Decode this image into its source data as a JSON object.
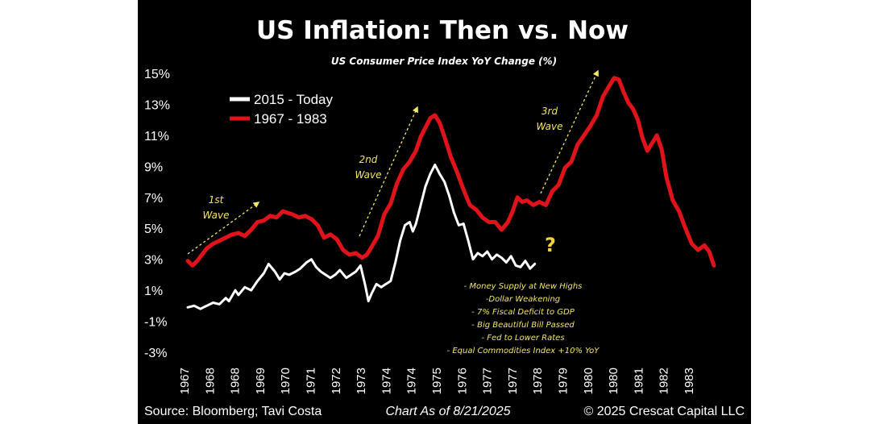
{
  "chart_data": {
    "type": "line",
    "title": "US Inflation: Then vs. Now",
    "subtitle": "US Consumer Price Index YoY Change (%)",
    "xlabel": "",
    "ylabel": "",
    "ylim": [
      -3,
      15
    ],
    "y_ticks": [
      "15%",
      "13%",
      "11%",
      "9%",
      "7%",
      "5%",
      "3%",
      "1%",
      "-1%",
      "-3%"
    ],
    "x_ticks": [
      "1967",
      "1968",
      "1968",
      "1969",
      "1970",
      "1971",
      "1972",
      "1973",
      "1974",
      "1974",
      "1975",
      "1976",
      "1977",
      "1977",
      "1978",
      "1979",
      "1980",
      "1980",
      "1981",
      "1982",
      "1983"
    ],
    "x_domain": [
      1967.0,
      1983.6
    ],
    "legend_position": "top-left",
    "series": [
      {
        "name": "2015 - Today",
        "color": "#ffffff",
        "points": [
          [
            1967.0,
            -0.1
          ],
          [
            1967.2,
            0.0
          ],
          [
            1967.4,
            -0.2
          ],
          [
            1967.6,
            0.0
          ],
          [
            1967.8,
            0.2
          ],
          [
            1968.0,
            0.1
          ],
          [
            1968.2,
            0.5
          ],
          [
            1968.3,
            0.3
          ],
          [
            1968.5,
            1.0
          ],
          [
            1968.6,
            0.7
          ],
          [
            1968.8,
            1.2
          ],
          [
            1969.0,
            1.0
          ],
          [
            1969.2,
            1.6
          ],
          [
            1969.4,
            2.1
          ],
          [
            1969.55,
            2.7
          ],
          [
            1969.75,
            2.2
          ],
          [
            1969.9,
            1.7
          ],
          [
            1970.05,
            2.1
          ],
          [
            1970.2,
            2.0
          ],
          [
            1970.4,
            2.2
          ],
          [
            1970.55,
            2.4
          ],
          [
            1970.75,
            2.8
          ],
          [
            1970.9,
            3.0
          ],
          [
            1971.05,
            2.5
          ],
          [
            1971.2,
            2.2
          ],
          [
            1971.35,
            2.0
          ],
          [
            1971.5,
            1.8
          ],
          [
            1971.65,
            2.0
          ],
          [
            1971.8,
            2.3
          ],
          [
            1972.0,
            1.8
          ],
          [
            1972.15,
            2.0
          ],
          [
            1972.3,
            2.2
          ],
          [
            1972.45,
            2.6
          ],
          [
            1972.6,
            1.3
          ],
          [
            1972.7,
            0.3
          ],
          [
            1972.8,
            0.8
          ],
          [
            1972.95,
            1.4
          ],
          [
            1973.1,
            1.2
          ],
          [
            1973.25,
            1.4
          ],
          [
            1973.4,
            1.6
          ],
          [
            1973.55,
            2.8
          ],
          [
            1973.7,
            4.2
          ],
          [
            1973.85,
            5.2
          ],
          [
            1974.0,
            5.4
          ],
          [
            1974.1,
            4.8
          ],
          [
            1974.2,
            5.3
          ],
          [
            1974.35,
            6.5
          ],
          [
            1974.5,
            7.7
          ],
          [
            1974.65,
            8.5
          ],
          [
            1974.8,
            9.1
          ],
          [
            1974.95,
            8.5
          ],
          [
            1975.1,
            8.0
          ],
          [
            1975.25,
            7.1
          ],
          [
            1975.4,
            6.0
          ],
          [
            1975.55,
            5.2
          ],
          [
            1975.7,
            5.3
          ],
          [
            1975.85,
            4.2
          ],
          [
            1976.0,
            3.0
          ],
          [
            1976.15,
            3.4
          ],
          [
            1976.3,
            3.2
          ],
          [
            1976.45,
            3.5
          ],
          [
            1976.6,
            3.0
          ],
          [
            1976.75,
            3.3
          ],
          [
            1976.9,
            3.1
          ],
          [
            1977.05,
            2.8
          ],
          [
            1977.2,
            3.2
          ],
          [
            1977.35,
            2.6
          ],
          [
            1977.5,
            2.5
          ],
          [
            1977.65,
            2.9
          ],
          [
            1977.8,
            2.4
          ],
          [
            1977.95,
            2.7
          ]
        ]
      },
      {
        "name": "1967 - 1983",
        "color": "#e0131b",
        "points": [
          [
            1967.0,
            2.9
          ],
          [
            1967.15,
            2.6
          ],
          [
            1967.3,
            2.9
          ],
          [
            1967.45,
            3.3
          ],
          [
            1967.6,
            3.7
          ],
          [
            1967.8,
            4.0
          ],
          [
            1968.0,
            4.2
          ],
          [
            1968.2,
            4.4
          ],
          [
            1968.4,
            4.6
          ],
          [
            1968.6,
            4.7
          ],
          [
            1968.8,
            4.5
          ],
          [
            1969.0,
            4.9
          ],
          [
            1969.2,
            5.4
          ],
          [
            1969.4,
            5.5
          ],
          [
            1969.6,
            5.8
          ],
          [
            1969.8,
            5.7
          ],
          [
            1970.0,
            6.1
          ],
          [
            1970.15,
            6.0
          ],
          [
            1970.3,
            5.9
          ],
          [
            1970.5,
            5.7
          ],
          [
            1970.7,
            5.8
          ],
          [
            1970.9,
            5.6
          ],
          [
            1971.1,
            5.2
          ],
          [
            1971.3,
            4.4
          ],
          [
            1971.5,
            4.6
          ],
          [
            1971.7,
            4.3
          ],
          [
            1971.9,
            3.6
          ],
          [
            1972.1,
            3.3
          ],
          [
            1972.3,
            3.4
          ],
          [
            1972.5,
            3.1
          ],
          [
            1972.65,
            3.3
          ],
          [
            1972.8,
            3.8
          ],
          [
            1973.0,
            4.5
          ],
          [
            1973.2,
            5.9
          ],
          [
            1973.4,
            6.6
          ],
          [
            1973.6,
            7.9
          ],
          [
            1973.8,
            8.8
          ],
          [
            1974.0,
            9.3
          ],
          [
            1974.2,
            10.0
          ],
          [
            1974.35,
            10.9
          ],
          [
            1974.5,
            11.5
          ],
          [
            1974.65,
            12.1
          ],
          [
            1974.8,
            12.3
          ],
          [
            1974.95,
            11.8
          ],
          [
            1975.1,
            10.9
          ],
          [
            1975.3,
            9.6
          ],
          [
            1975.5,
            8.6
          ],
          [
            1975.7,
            7.5
          ],
          [
            1975.9,
            6.5
          ],
          [
            1976.1,
            6.2
          ],
          [
            1976.3,
            5.7
          ],
          [
            1976.5,
            5.4
          ],
          [
            1976.7,
            5.4
          ],
          [
            1976.9,
            4.9
          ],
          [
            1977.1,
            5.4
          ],
          [
            1977.25,
            6.1
          ],
          [
            1977.4,
            7.0
          ],
          [
            1977.55,
            6.7
          ],
          [
            1977.7,
            6.8
          ],
          [
            1977.9,
            6.5
          ],
          [
            1978.1,
            6.7
          ],
          [
            1978.3,
            6.5
          ],
          [
            1978.5,
            7.4
          ],
          [
            1978.7,
            7.8
          ],
          [
            1978.9,
            8.9
          ],
          [
            1979.1,
            9.3
          ],
          [
            1979.3,
            10.4
          ],
          [
            1979.5,
            11.0
          ],
          [
            1979.7,
            11.6
          ],
          [
            1979.9,
            12.3
          ],
          [
            1980.1,
            13.5
          ],
          [
            1980.3,
            14.2
          ],
          [
            1980.45,
            14.7
          ],
          [
            1980.6,
            14.6
          ],
          [
            1980.75,
            13.8
          ],
          [
            1980.9,
            13.1
          ],
          [
            1981.05,
            12.7
          ],
          [
            1981.2,
            12.0
          ],
          [
            1981.35,
            10.8
          ],
          [
            1981.5,
            10.0
          ],
          [
            1981.65,
            10.5
          ],
          [
            1981.8,
            11.0
          ],
          [
            1981.95,
            10.1
          ],
          [
            1982.1,
            8.3
          ],
          [
            1982.3,
            6.8
          ],
          [
            1982.5,
            6.1
          ],
          [
            1982.7,
            5.0
          ],
          [
            1982.9,
            4.0
          ],
          [
            1983.1,
            3.6
          ],
          [
            1983.3,
            3.9
          ],
          [
            1983.45,
            3.5
          ],
          [
            1983.6,
            2.6
          ]
        ]
      }
    ],
    "annotations": {
      "wave1": [
        "1st",
        "Wave"
      ],
      "wave2": [
        "2nd",
        "Wave"
      ],
      "wave3": [
        "3rd",
        "Wave"
      ],
      "question_mark": "?",
      "notes": [
        "- Money Supply at New Highs",
        "-Dollar Weakening",
        "- 7% Fiscal Deficit to GDP",
        "- Big Beautiful Bill Passed",
        "- Fed to Lower Rates",
        "- Equal Commodities Index +10% YoY"
      ]
    }
  },
  "footer": {
    "source": "Source: Bloomberg; Tavi Costa",
    "date": "Chart As of 8/21/2025",
    "copyright": "© 2025 Crescat Capital LLC"
  },
  "colors": {
    "background": "#000000",
    "text": "#ffffff",
    "annotation": "#f5e663",
    "question": "#f0d23a"
  }
}
